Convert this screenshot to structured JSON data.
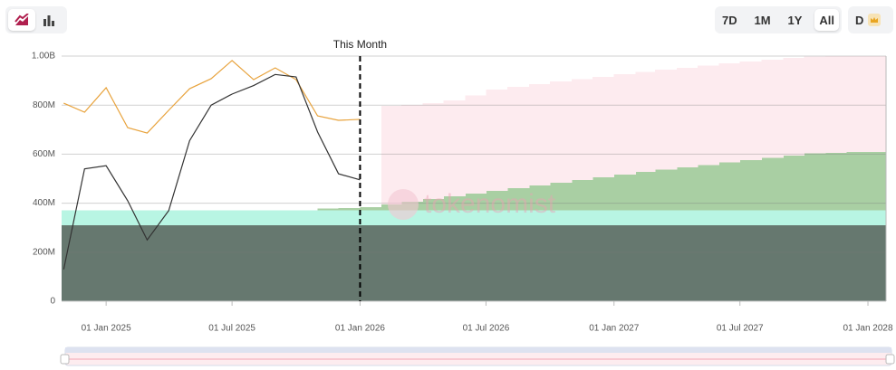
{
  "toolbar": {
    "ranges": [
      "7D",
      "1M",
      "1Y",
      "All"
    ],
    "currency": "D"
  },
  "chart_data": {
    "type": "area-line",
    "watermark": "tokenomist",
    "annotation": {
      "text": "This Month",
      "x": "2026-01-01"
    },
    "xlim": [
      "2024-10-29",
      "2028-01-27"
    ],
    "xticks": [
      {
        "value": "2025-01-01",
        "label": "01 Jan 2025"
      },
      {
        "value": "2025-07-01",
        "label": "01 Jul 2025"
      },
      {
        "value": "2026-01-01",
        "label": "01 Jan 2026"
      },
      {
        "value": "2026-07-01",
        "label": "01 Jul 2026"
      },
      {
        "value": "2027-01-01",
        "label": "01 Jan 2027"
      },
      {
        "value": "2027-07-01",
        "label": "01 Jul 2027"
      },
      {
        "value": "2028-01-01",
        "label": "01 Jan 2028"
      }
    ],
    "ylim": [
      0,
      1000000000
    ],
    "yticks": [
      0,
      {
        "value": 200000000,
        "label": "200M"
      },
      {
        "value": 400000000,
        "label": "400M"
      },
      {
        "value": 600000000,
        "label": "600M"
      },
      {
        "value": 800000000,
        "label": "800M"
      },
      {
        "value": 1000000000,
        "label": "1.00B"
      }
    ],
    "grid": true,
    "series": [
      {
        "kind": "step-area",
        "color": "#66786f",
        "x": [
          "2024-10-29"
        ],
        "values": [
          310000000
        ]
      },
      {
        "kind": "step-area",
        "color": "#b8f5e3",
        "x": [
          "2024-10-29"
        ],
        "values": [
          60000000
        ]
      },
      {
        "kind": "step-area",
        "color": "#a9cfa3",
        "x": [
          "2025-11-01",
          "2025-12-01",
          "2026-01-01",
          "2026-02-01",
          "2026-03-01",
          "2026-04-01",
          "2026-05-01",
          "2026-06-01",
          "2026-07-01",
          "2026-08-01",
          "2026-09-01",
          "2026-10-01",
          "2026-11-01",
          "2026-12-01",
          "2027-01-01",
          "2027-02-01",
          "2027-03-01",
          "2027-04-01",
          "2027-05-01",
          "2027-06-01",
          "2027-07-01",
          "2027-08-01",
          "2027-09-01",
          "2027-10-01",
          "2027-11-01",
          "2027-12-01",
          "2028-01-01"
        ],
        "values": [
          8000000,
          10000000,
          14000000,
          25000000,
          36000000,
          47000000,
          58000000,
          70000000,
          81000000,
          92000000,
          103000000,
          114000000,
          125000000,
          136000000,
          147000000,
          157000000,
          167000000,
          177000000,
          186000000,
          196000000,
          206000000,
          215000000,
          224000000,
          233000000,
          236000000,
          238000000,
          239000000
        ]
      },
      {
        "kind": "step-area",
        "color": "#fdebef",
        "x": [
          "2026-02-01",
          "2026-03-01",
          "2026-04-01",
          "2026-05-01",
          "2026-06-01",
          "2026-07-01",
          "2026-08-01",
          "2026-09-01",
          "2026-10-01",
          "2026-11-01",
          "2026-12-01",
          "2027-01-01",
          "2027-02-01",
          "2027-03-01",
          "2027-04-01",
          "2027-05-01",
          "2027-06-01",
          "2027-07-01",
          "2027-08-01",
          "2027-09-01",
          "2027-10-01",
          "2027-11-01",
          "2027-12-01",
          "2028-01-01"
        ],
        "values": [
          402000000,
          395000000,
          391000000,
          392000000,
          400000000,
          412000000,
          412000000,
          412000000,
          412000000,
          411000000,
          410000000,
          409000000,
          408000000,
          407000000,
          405000000,
          405000000,
          404000000,
          402000000,
          400000000,
          398000000,
          395000000,
          394000000,
          392000000,
          391000000
        ]
      },
      {
        "kind": "line",
        "color": "#e8a33d",
        "x": [
          "2024-11-01",
          "2024-12-01",
          "2025-01-01",
          "2025-02-01",
          "2025-03-01",
          "2025-04-01",
          "2025-05-01",
          "2025-06-01",
          "2025-07-01",
          "2025-08-01",
          "2025-09-01",
          "2025-10-01",
          "2025-11-01",
          "2025-12-01",
          "2026-01-01"
        ],
        "values": [
          808000000,
          771000000,
          871000000,
          708000000,
          686000000,
          779000000,
          867000000,
          908000000,
          982000000,
          904000000,
          952000000,
          904000000,
          756000000,
          738000000,
          742000000
        ]
      },
      {
        "kind": "line",
        "color": "#333333",
        "x": [
          "2024-11-01",
          "2024-12-01",
          "2025-01-01",
          "2025-02-01",
          "2025-03-01",
          "2025-04-01",
          "2025-05-01",
          "2025-06-01",
          "2025-07-01",
          "2025-08-01",
          "2025-09-01",
          "2025-10-01",
          "2025-11-01",
          "2025-12-01",
          "2026-01-01"
        ],
        "values": [
          130000000,
          540000000,
          553000000,
          410000000,
          250000000,
          370000000,
          655000000,
          800000000,
          845000000,
          880000000,
          925000000,
          915000000,
          690000000,
          520000000,
          495000000
        ]
      }
    ]
  }
}
